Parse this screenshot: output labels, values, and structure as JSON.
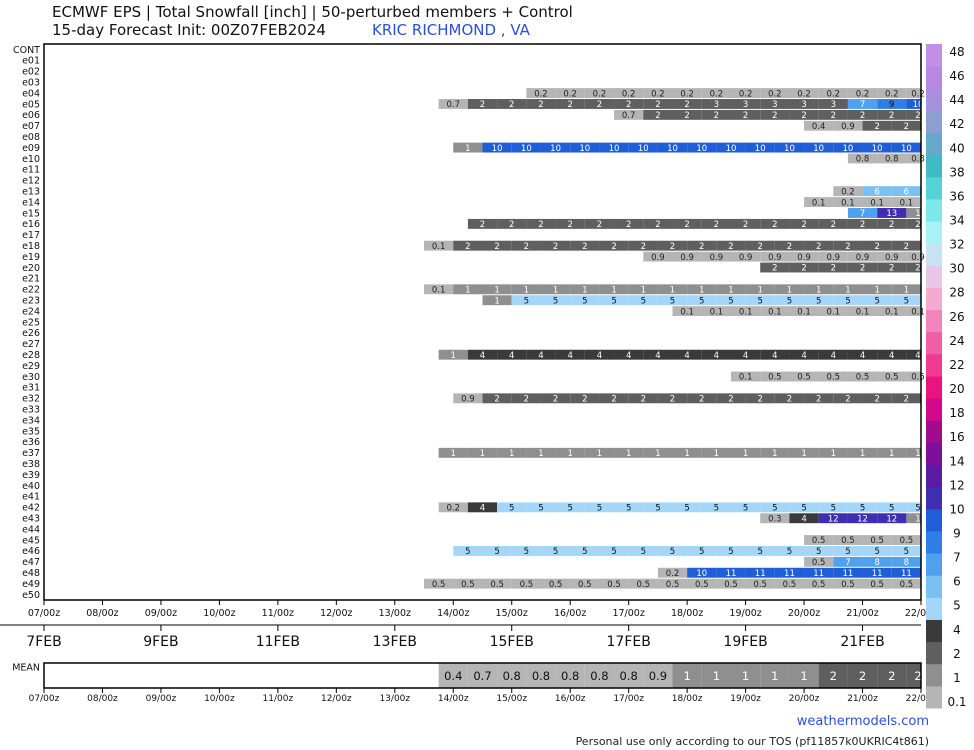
{
  "header": {
    "title": "ECMWF EPS | Total Snowfall [inch] | 50-perturbed members + Control",
    "subtitle": "15-day Forecast Init: 00Z07FEB2024",
    "station": "KRIC RICHMOND      , VA"
  },
  "footer": {
    "credit": "weathermodels.com",
    "tos": "Personal use only according to our TOS (pf11857k0UKRIC4t861)"
  },
  "chart_data": {
    "type": "heatmap",
    "members": [
      "CONT",
      "e01",
      "e02",
      "e03",
      "e04",
      "e05",
      "e06",
      "e07",
      "e08",
      "e09",
      "e10",
      "e11",
      "e12",
      "e13",
      "e14",
      "e15",
      "e16",
      "e17",
      "e18",
      "e19",
      "e20",
      "e21",
      "e22",
      "e23",
      "e24",
      "e25",
      "e26",
      "e27",
      "e28",
      "e29",
      "e30",
      "e31",
      "e32",
      "e33",
      "e34",
      "e35",
      "e36",
      "e37",
      "e38",
      "e39",
      "e40",
      "e41",
      "e42",
      "e43",
      "e44",
      "e45",
      "e46",
      "e47",
      "e48",
      "e49",
      "e50"
    ],
    "x_tick_labels": [
      "07/00z",
      "08/00z",
      "09/00z",
      "10/00z",
      "11/00z",
      "12/00z",
      "13/00z",
      "14/00z",
      "15/00z",
      "16/00z",
      "17/00z",
      "18/00z",
      "19/00z",
      "20/00z",
      "21/00z",
      "22/00z"
    ],
    "date_labels": [
      "7FEB",
      "9FEB",
      "11FEB",
      "13FEB",
      "15FEB",
      "17FEB",
      "19FEB",
      "21FEB"
    ],
    "time_step_hours": 12,
    "rows": [
      {
        "member": "e04",
        "start": "15/06z",
        "values": [
          0.2,
          0.2,
          0.2,
          0.2,
          0.2,
          0.2,
          0.2,
          0.2,
          0.2,
          0.2,
          0.2,
          0.2,
          0.2,
          0.2
        ]
      },
      {
        "member": "e05",
        "start": "13/18z",
        "values": [
          0.7,
          2,
          2,
          2,
          2,
          2,
          2,
          2,
          2,
          3,
          3,
          3,
          3,
          3,
          7,
          9,
          10,
          1
        ]
      },
      {
        "member": "e06",
        "start": "16/18z",
        "values": [
          0.7,
          2,
          2,
          2,
          2,
          2,
          2,
          2,
          2,
          2,
          2,
          2
        ]
      },
      {
        "member": "e07",
        "start": "20/00z",
        "values": [
          0.4,
          0.9,
          2,
          2,
          2
        ]
      },
      {
        "member": "e09",
        "start": "14/00z",
        "values": [
          1,
          10,
          10,
          10,
          10,
          10,
          10,
          10,
          10,
          10,
          10,
          10,
          10,
          10,
          10,
          10,
          10
        ]
      },
      {
        "member": "e10",
        "start": "20/18z",
        "values": [
          0.8,
          0.8,
          0.8
        ]
      },
      {
        "member": "e13",
        "start": "20/12z",
        "values": [
          0.2,
          6,
          6,
          6
        ]
      },
      {
        "member": "e14",
        "start": "20/00z",
        "values": [
          0.1,
          0.1,
          0.1,
          0.1,
          0.1
        ]
      },
      {
        "member": "e15",
        "start": "20/18z",
        "values": [
          7,
          13,
          1
        ]
      },
      {
        "member": "e16",
        "start": "14/06z",
        "values": [
          2,
          2,
          2,
          2,
          2,
          2,
          2,
          2,
          2,
          2,
          2,
          2,
          2,
          2,
          2,
          2
        ]
      },
      {
        "member": "e18",
        "start": "13/12z",
        "values": [
          0.1,
          2,
          2,
          2,
          2,
          2,
          2,
          2,
          2,
          2,
          2,
          2,
          2,
          2,
          2,
          2,
          2,
          2,
          2
        ]
      },
      {
        "member": "e19",
        "start": "17/06z",
        "values": [
          0.9,
          0.9,
          0.9,
          0.9,
          0.9,
          0.9,
          0.9,
          0.9,
          0.9,
          0.9
        ]
      },
      {
        "member": "e20",
        "start": "19/06z",
        "values": [
          2,
          2,
          2,
          2,
          2,
          2
        ]
      },
      {
        "member": "e22",
        "start": "13/12z",
        "values": [
          0.1,
          1,
          1,
          1,
          1,
          1,
          1,
          1,
          1,
          1,
          1,
          1,
          1,
          1,
          1,
          1,
          1,
          1,
          1
        ]
      },
      {
        "member": "e23",
        "start": "14/12z",
        "values": [
          1,
          5,
          5,
          5,
          5,
          5,
          5,
          5,
          5,
          5,
          5,
          5,
          5,
          5,
          5,
          5
        ]
      },
      {
        "member": "e24",
        "start": "17/18z",
        "values": [
          0.1,
          0.1,
          0.1,
          0.1,
          0.1,
          0.1,
          0.1,
          0.1,
          0.1
        ]
      },
      {
        "member": "e28",
        "start": "13/18z",
        "values": [
          1,
          4,
          4,
          4,
          4,
          4,
          4,
          4,
          4,
          4,
          4,
          4,
          4,
          4,
          4,
          4,
          4
        ]
      },
      {
        "member": "e30",
        "start": "18/18z",
        "values": [
          0.1,
          0.5,
          0.5,
          0.5,
          0.5,
          0.5,
          0.5,
          0.5
        ]
      },
      {
        "member": "e32",
        "start": "14/00z",
        "values": [
          0.9,
          2,
          2,
          2,
          2,
          2,
          2,
          2,
          2,
          2,
          2,
          2,
          2,
          2,
          2,
          2,
          2
        ]
      },
      {
        "member": "e37",
        "start": "13/18z",
        "values": [
          1,
          1,
          1,
          1,
          1,
          1,
          1,
          1,
          1,
          1,
          1,
          1,
          1,
          1,
          1,
          1,
          1
        ]
      },
      {
        "member": "e42",
        "start": "13/18z",
        "values": [
          0.2,
          4,
          5,
          5,
          5,
          5,
          5,
          5,
          5,
          5,
          5,
          5,
          5,
          5,
          5,
          5,
          5
        ]
      },
      {
        "member": "e43",
        "start": "19/06z",
        "values": [
          0.3,
          4,
          12,
          12,
          12,
          1
        ]
      },
      {
        "member": "e45",
        "start": "20/00z",
        "values": [
          0.5,
          0.5,
          0.5,
          0.5,
          0.5
        ]
      },
      {
        "member": "e46",
        "start": "14/00z",
        "values": [
          5,
          5,
          5,
          5,
          5,
          5,
          5,
          5,
          5,
          5,
          5,
          5,
          5,
          5,
          5,
          5,
          5
        ]
      },
      {
        "member": "e47",
        "start": "20/00z",
        "values": [
          0.5,
          7,
          8,
          8,
          8
        ]
      },
      {
        "member": "e48",
        "start": "17/12z",
        "values": [
          0.2,
          10,
          11,
          11,
          11,
          11,
          11,
          11,
          11,
          11,
          1
        ]
      },
      {
        "member": "e49",
        "start": "13/12z",
        "values": [
          0.5,
          0.5,
          0.5,
          0.5,
          0.5,
          0.5,
          0.5,
          0.5,
          0.5,
          0.5,
          0.5,
          0.5,
          0.5,
          0.5,
          0.5,
          0.5,
          0.5,
          0.5,
          0.5
        ]
      }
    ],
    "mean_label": "MEAN",
    "mean": {
      "start": "13/18z",
      "values": [
        0.4,
        0.7,
        0.8,
        0.8,
        0.8,
        0.8,
        0.8,
        0.9,
        1,
        1,
        1,
        1,
        1,
        2,
        2,
        2,
        2
      ]
    },
    "colorbar": {
      "labels": [
        "0.1",
        "1",
        "2",
        "4",
        "5",
        "6",
        "7",
        "9",
        "10",
        "12",
        "14",
        "16",
        "18",
        "20",
        "22",
        "24",
        "26",
        "28",
        "30",
        "32",
        "34",
        "36",
        "38",
        "40",
        "42",
        "44",
        "46",
        "48"
      ],
      "colors": [
        "#b5b5b5",
        "#8f8f8f",
        "#5f5f5f",
        "#3a3a3a",
        "#a4d6fa",
        "#79c0f5",
        "#4fa1ef",
        "#2d7ee6",
        "#1f5ed6",
        "#3f2fb0",
        "#5a1aa3",
        "#7d0f9a",
        "#a40a8e",
        "#d00a8a",
        "#e9157f",
        "#ee3a90",
        "#f05ea6",
        "#f383bd",
        "#f6a9d1",
        "#e6c7e5",
        "#c8e4f3",
        "#a8f1f6",
        "#7de8ea",
        "#56d2d6",
        "#3dbcc2",
        "#66a8c8",
        "#8b9fd1",
        "#a890dc",
        "#b987e4",
        "#c48de8"
      ]
    }
  }
}
